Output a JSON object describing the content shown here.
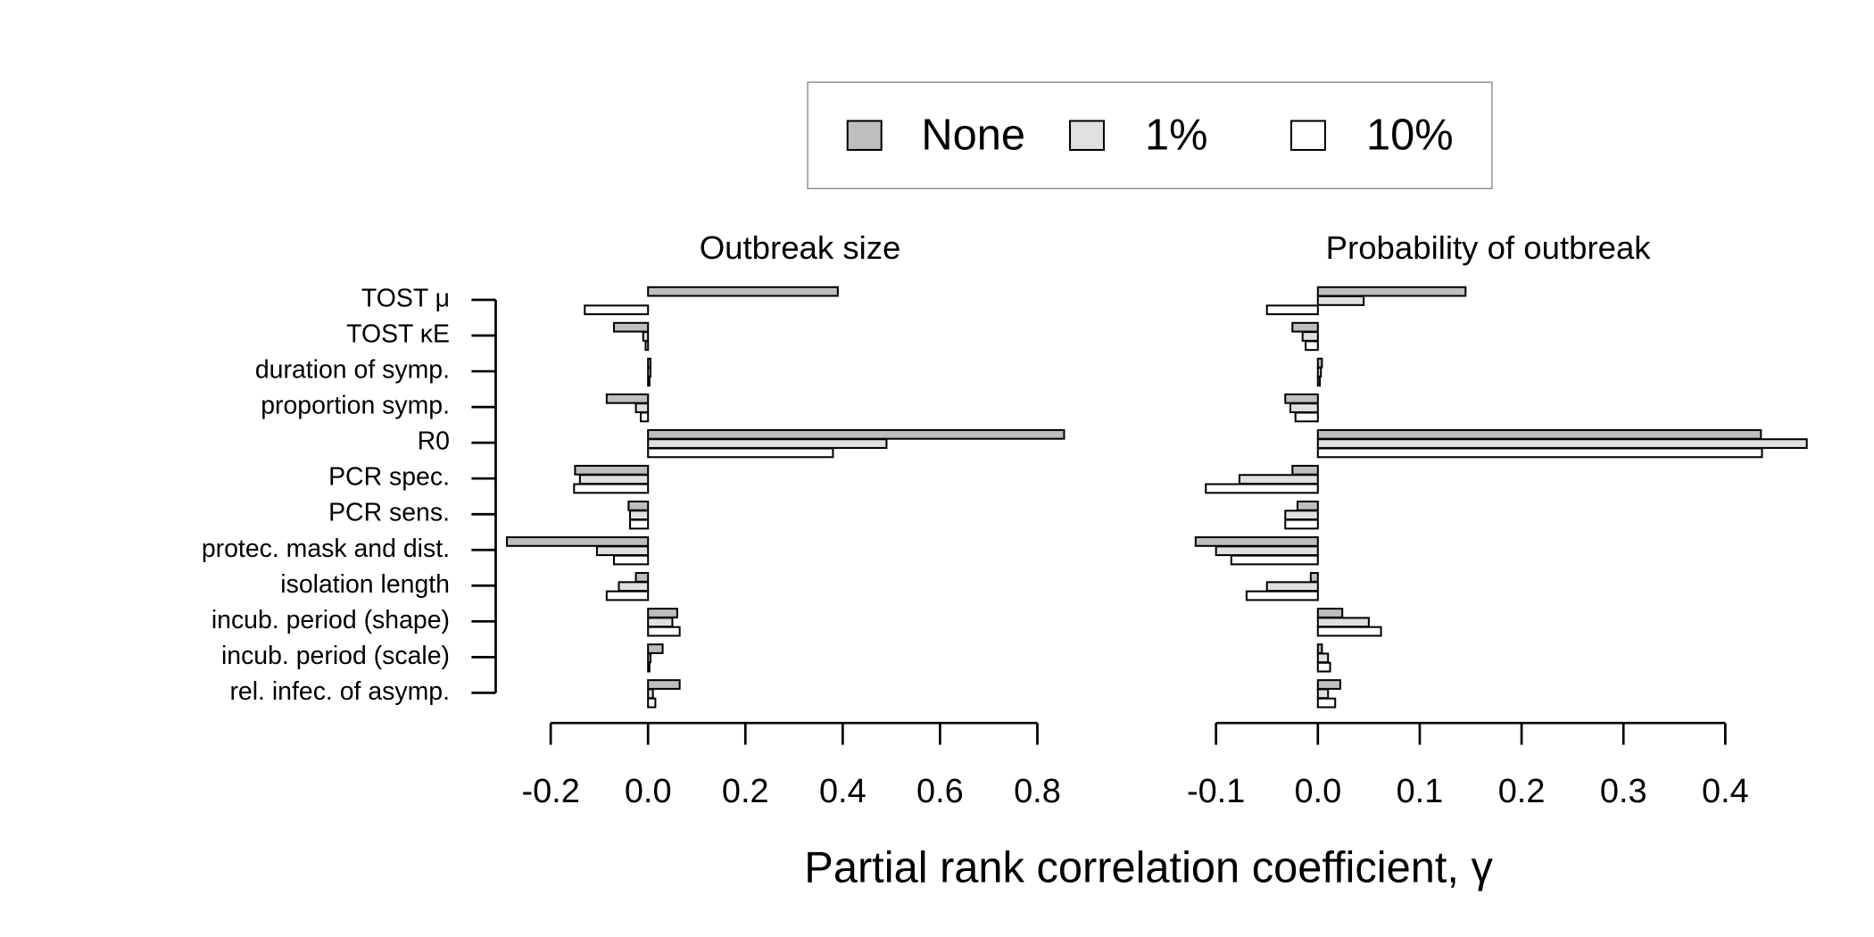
{
  "chart_data": [
    {
      "type": "bar",
      "orientation": "horizontal",
      "title": "Outbreak size",
      "xlabel": "Partial rank correlation coefficient, γ",
      "legend": "top",
      "categories": [
        "TOST μ",
        "TOST κE",
        "duration of symp.",
        "proportion symp.",
        "R0",
        "PCR spec.",
        "PCR sens.",
        "protec. mask and dist.",
        "isolation length",
        "incub. period (shape)",
        "incub. period (scale)",
        "rel. infec. of asymp."
      ],
      "series": [
        {
          "name": "None",
          "color": "#bebebe",
          "values": [
            0.39,
            -0.07,
            0.005,
            -0.085,
            0.855,
            -0.15,
            -0.04,
            -0.29,
            -0.025,
            0.06,
            0.03,
            0.065
          ]
        },
        {
          "name": "1%",
          "color": "#e0e0e0",
          "values": [
            0,
            -0.01,
            0.005,
            -0.025,
            0.49,
            -0.14,
            -0.037,
            -0.105,
            -0.06,
            0.05,
            0.005,
            0.01
          ]
        },
        {
          "name": "10%",
          "color": "#ffffff",
          "values": [
            -0.13,
            -0.005,
            0.003,
            -0.015,
            0.38,
            -0.152,
            -0.037,
            -0.07,
            -0.085,
            0.065,
            0.003,
            0.015
          ]
        }
      ],
      "xlim": [
        -0.3,
        0.9
      ],
      "xticks": [
        -0.2,
        {
          "value": 0,
          "label": "0.0"
        },
        0.2,
        0.4,
        0.6,
        0.8
      ]
    },
    {
      "type": "bar",
      "orientation": "horizontal",
      "title": "Probability of outbreak",
      "series": [
        {
          "color": "#bebebe",
          "values": [
            0.145,
            -0.025,
            0.004,
            -0.032,
            0.435,
            -0.025,
            -0.02,
            -0.12,
            -0.007,
            0.024,
            0.004,
            0.022
          ]
        },
        {
          "color": "#e0e0e0",
          "values": [
            0.045,
            -0.015,
            0.003,
            -0.027,
            0.48,
            -0.077,
            -0.032,
            -0.1,
            -0.05,
            0.05,
            0.01,
            0.01
          ]
        },
        {
          "color": "#ffffff",
          "values": [
            -0.05,
            -0.012,
            0.002,
            -0.022,
            0.436,
            -0.11,
            -0.032,
            -0.085,
            -0.07,
            0.062,
            0.012,
            0.017
          ]
        }
      ],
      "xlim": [
        -0.13,
        0.5
      ],
      "xticks": [
        -0.1,
        {
          "value": 0,
          "label": "0.0"
        },
        0.1,
        0.2,
        0.3,
        0.4
      ]
    }
  ]
}
